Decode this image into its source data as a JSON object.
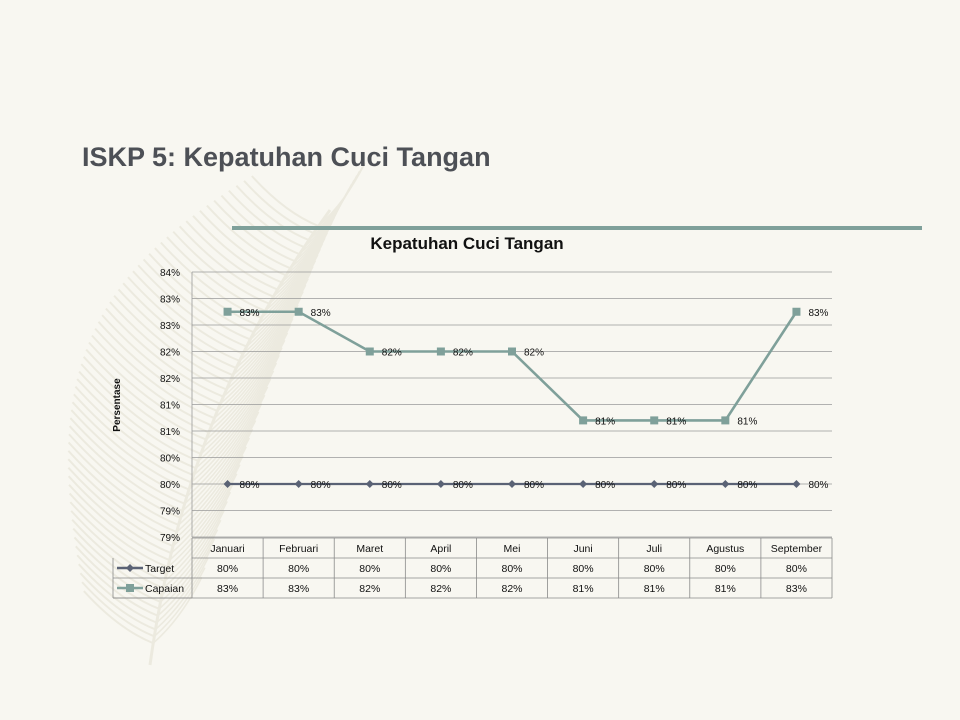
{
  "slide": {
    "title": "ISKP 5: Kepatuhan Cuci Tangan"
  },
  "colors": {
    "background": "#f8f7f1",
    "title": "#4d5056",
    "accent_rule": "#7fa09a",
    "target_series": "#5a6275",
    "capaian_series": "#7fa09a",
    "feather": "#e3e0d2"
  },
  "chart_data": {
    "type": "line",
    "title": "Kepatuhan Cuci Tangan",
    "ylabel": "Persentase",
    "xlabel": "",
    "ylim": [
      79.0,
      84.0
    ],
    "ytick_labels": [
      "84%",
      "83%",
      "83%",
      "82%",
      "82%",
      "81%",
      "81%",
      "80%",
      "80%",
      "79%",
      "79%"
    ],
    "grid": true,
    "legend": "data-table",
    "categories": [
      "Januari",
      "Februari",
      "Maret",
      "April",
      "Mei",
      "Juni",
      "Juli",
      "Agustus",
      "September"
    ],
    "series": [
      {
        "name": "Target",
        "marker": "diamond",
        "values": [
          80,
          80,
          80,
          80,
          80,
          80,
          80,
          80,
          80
        ],
        "labels": [
          "80%",
          "80%",
          "80%",
          "80%",
          "80%",
          "80%",
          "80%",
          "80%",
          "80%"
        ]
      },
      {
        "name": "Capaian",
        "marker": "square",
        "values": [
          83.25,
          83.25,
          82.5,
          82.5,
          82.5,
          81.2,
          81.2,
          81.2,
          83.25
        ],
        "labels": [
          "83%",
          "83%",
          "82%",
          "82%",
          "82%",
          "81%",
          "81%",
          "81%",
          "83%"
        ]
      }
    ]
  }
}
